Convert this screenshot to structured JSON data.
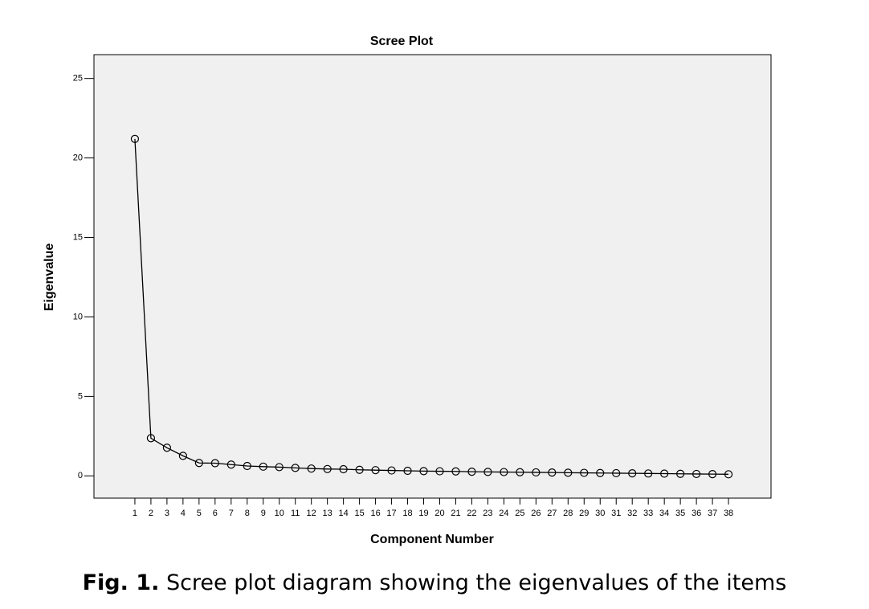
{
  "chart_data": {
    "type": "line",
    "title": "Scree Plot",
    "x_label": "Component Number",
    "y_label": "Eigenvalue",
    "x": [
      1,
      2,
      3,
      4,
      5,
      6,
      7,
      8,
      9,
      10,
      11,
      12,
      13,
      14,
      15,
      16,
      17,
      18,
      19,
      20,
      21,
      22,
      23,
      24,
      25,
      26,
      27,
      28,
      29,
      30,
      31,
      32,
      33,
      34,
      35,
      36,
      37,
      38
    ],
    "series": [
      {
        "name": "Eigenvalue",
        "color": "#000000",
        "values": [
          21.2,
          2.37,
          1.77,
          1.26,
          0.81,
          0.8,
          0.71,
          0.62,
          0.58,
          0.55,
          0.5,
          0.46,
          0.43,
          0.42,
          0.38,
          0.36,
          0.34,
          0.32,
          0.3,
          0.29,
          0.28,
          0.26,
          0.25,
          0.24,
          0.23,
          0.22,
          0.21,
          0.2,
          0.19,
          0.18,
          0.17,
          0.16,
          0.15,
          0.14,
          0.13,
          0.12,
          0.11,
          0.1
        ]
      }
    ],
    "xlim": [
      -1.55,
      40.65
    ],
    "xticks": [
      1,
      2,
      3,
      4,
      5,
      6,
      7,
      8,
      9,
      10,
      11,
      12,
      13,
      14,
      15,
      16,
      17,
      18,
      19,
      20,
      21,
      22,
      23,
      24,
      25,
      26,
      27,
      28,
      29,
      30,
      31,
      32,
      33,
      34,
      35,
      36,
      37,
      38
    ],
    "ylim": [
      -1.4,
      26.5
    ],
    "yticks": [
      0,
      5,
      10,
      15,
      20,
      25
    ],
    "background": "#f0f0f0"
  },
  "caption": {
    "label": "Fig. 1.",
    "text": "Scree plot diagram showing the eigenvalues of the items"
  }
}
